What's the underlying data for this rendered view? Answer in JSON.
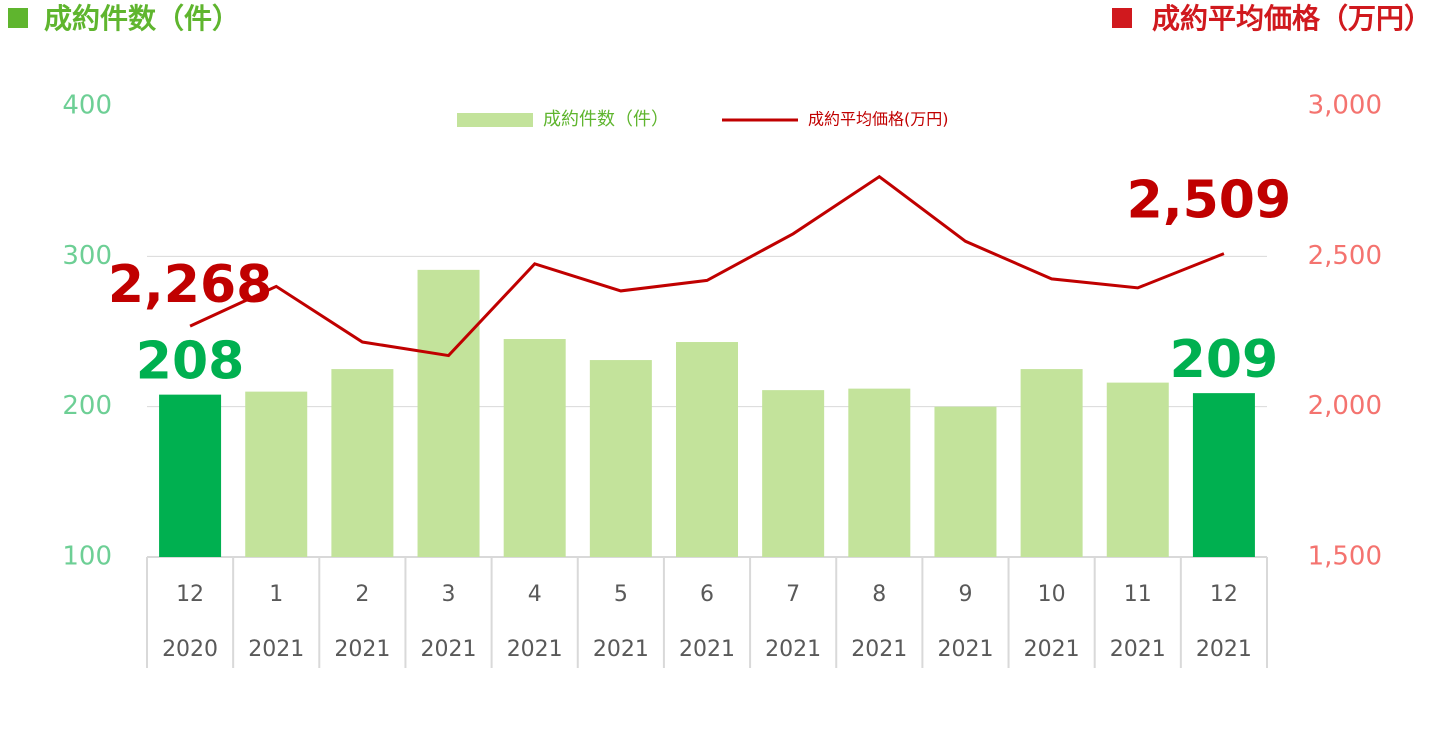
{
  "chart_data": {
    "type": "bar-line",
    "left_axis_title": "成約件数（件）",
    "right_axis_title": "成約平均価格（万円）",
    "categories": [
      "12",
      "1",
      "2",
      "3",
      "4",
      "5",
      "6",
      "7",
      "8",
      "9",
      "10",
      "11",
      "12"
    ],
    "category_years": [
      "2020",
      "2021",
      "2021",
      "2021",
      "2021",
      "2021",
      "2021",
      "2021",
      "2021",
      "2021",
      "2021",
      "2021",
      "2021"
    ],
    "series": [
      {
        "name": "成約件数（件）",
        "type": "bar",
        "color": "#c3e39b",
        "bar_colors": [
          "#00b050",
          "#c3e39b",
          "#c3e39b",
          "#c3e39b",
          "#c3e39b",
          "#c3e39b",
          "#c3e39b",
          "#c3e39b",
          "#c3e39b",
          "#c3e39b",
          "#c3e39b",
          "#c3e39b",
          "#00b050"
        ],
        "values": [
          208,
          210,
          225,
          291,
          245,
          231,
          243,
          211,
          212,
          200,
          225,
          216,
          209
        ],
        "value_labels": [
          "208",
          null,
          null,
          null,
          null,
          null,
          null,
          null,
          null,
          null,
          null,
          null,
          "209"
        ],
        "label_color": "#00b050"
      },
      {
        "name": "成約平均価格(万円)",
        "type": "line",
        "axis": "y2",
        "color": "#c00000",
        "values": [
          2268,
          2400,
          2215,
          2170,
          2475,
          2385,
          2420,
          2575,
          2765,
          2550,
          2425,
          2395,
          2509
        ],
        "value_labels": [
          "2,268",
          null,
          null,
          null,
          null,
          null,
          null,
          null,
          null,
          null,
          null,
          null,
          "2,509"
        ],
        "label_color": "#c00000"
      }
    ],
    "ylim": [
      100,
      400
    ],
    "yticks": [
      100,
      200,
      300,
      400
    ],
    "y2lim": [
      1500,
      3000
    ],
    "y2ticks": [
      {
        "value": 1500,
        "label": "1,500"
      },
      {
        "value": 2000,
        "label": "2,000"
      },
      {
        "value": 2500,
        "label": "2,500"
      },
      {
        "value": 3000,
        "label": "3,000"
      }
    ],
    "grid": true,
    "legend": "top"
  }
}
